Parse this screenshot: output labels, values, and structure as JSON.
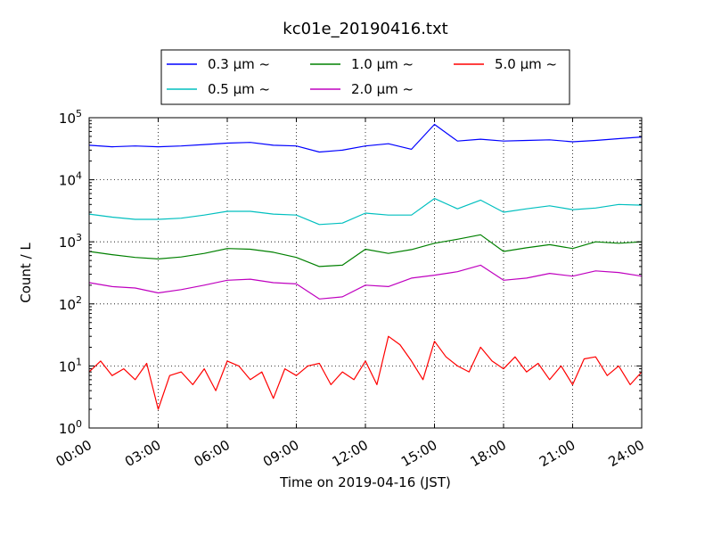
{
  "chart_data": {
    "type": "line",
    "title": "kc01e_20190416.txt",
    "xlabel": "Time on 2019-04-16 (JST)",
    "ylabel": "Count / L",
    "xlim": [
      0,
      24
    ],
    "ylim": [
      1,
      100000
    ],
    "yscale": "log",
    "grid": true,
    "legend_position": "top-center",
    "xticks": [
      0,
      3,
      6,
      9,
      12,
      15,
      18,
      21,
      24
    ],
    "xtick_labels": [
      "00:00",
      "03:00",
      "06:00",
      "09:00",
      "12:00",
      "15:00",
      "18:00",
      "21:00",
      "24:00"
    ],
    "yticks": [
      1,
      10,
      100,
      1000,
      10000,
      100000
    ],
    "ytick_labels": [
      {
        "base": "10",
        "exp": "0"
      },
      {
        "base": "10",
        "exp": "1"
      },
      {
        "base": "10",
        "exp": "2"
      },
      {
        "base": "10",
        "exp": "3"
      },
      {
        "base": "10",
        "exp": "4"
      },
      {
        "base": "10",
        "exp": "5"
      }
    ],
    "series": [
      {
        "name": "0.3 μm ~",
        "color": "#0000ff",
        "x": [
          0,
          1,
          2,
          3,
          4,
          5,
          6,
          7,
          8,
          9,
          10,
          11,
          12,
          13,
          14,
          15,
          16,
          17,
          18,
          19,
          20,
          21,
          22,
          23,
          24
        ],
        "values": [
          36000,
          34000,
          35000,
          34000,
          35000,
          37000,
          39000,
          40000,
          36000,
          35000,
          28000,
          30000,
          35000,
          38000,
          31000,
          78000,
          42000,
          45000,
          42000,
          43000,
          44000,
          41000,
          43000,
          46000,
          49000
        ]
      },
      {
        "name": "0.5 μm ~",
        "color": "#00bfbf",
        "x": [
          0,
          1,
          2,
          3,
          4,
          5,
          6,
          7,
          8,
          9,
          10,
          11,
          12,
          13,
          14,
          15,
          16,
          17,
          18,
          19,
          20,
          21,
          22,
          23,
          24
        ],
        "values": [
          2800,
          2500,
          2300,
          2300,
          2400,
          2700,
          3100,
          3100,
          2800,
          2700,
          1900,
          2000,
          2900,
          2700,
          2700,
          5000,
          3400,
          4700,
          3000,
          3400,
          3800,
          3300,
          3500,
          4000,
          3900
        ]
      },
      {
        "name": "1.0 μm ~",
        "color": "#008000",
        "x": [
          0,
          1,
          2,
          3,
          4,
          5,
          6,
          7,
          8,
          9,
          10,
          11,
          12,
          13,
          14,
          15,
          16,
          17,
          18,
          19,
          20,
          21,
          22,
          23,
          24
        ],
        "values": [
          700,
          620,
          560,
          530,
          570,
          650,
          780,
          760,
          680,
          560,
          400,
          420,
          760,
          650,
          750,
          950,
          1100,
          1300,
          700,
          800,
          900,
          780,
          1000,
          950,
          1000
        ]
      },
      {
        "name": "2.0 μm ~",
        "color": "#bf00bf",
        "x": [
          0,
          1,
          2,
          3,
          4,
          5,
          6,
          7,
          8,
          9,
          10,
          11,
          12,
          13,
          14,
          15,
          16,
          17,
          18,
          19,
          20,
          21,
          22,
          23,
          24
        ],
        "values": [
          220,
          190,
          180,
          150,
          170,
          200,
          240,
          250,
          220,
          210,
          120,
          130,
          200,
          190,
          260,
          290,
          330,
          420,
          240,
          260,
          310,
          280,
          340,
          320,
          280
        ]
      },
      {
        "name": "5.0 μm ~",
        "color": "#ff0000",
        "x": [
          0,
          0.5,
          1,
          1.5,
          2,
          2.5,
          3,
          3.5,
          4,
          4.5,
          5,
          5.5,
          6,
          6.5,
          7,
          7.5,
          8,
          8.5,
          9,
          9.5,
          10,
          10.5,
          11,
          11.5,
          12,
          12.5,
          13,
          13.5,
          14,
          14.5,
          15,
          15.5,
          16,
          16.5,
          17,
          17.5,
          18,
          18.5,
          19,
          19.5,
          20,
          20.5,
          21,
          21.5,
          22,
          22.5,
          23,
          23.5,
          24
        ],
        "values": [
          8,
          12,
          7,
          9,
          6,
          11,
          2,
          7,
          8,
          5,
          9,
          4,
          12,
          10,
          6,
          8,
          3,
          9,
          7,
          10,
          11,
          5,
          8,
          6,
          12,
          5,
          30,
          22,
          12,
          6,
          25,
          14,
          10,
          8,
          20,
          12,
          9,
          14,
          8,
          11,
          6,
          10,
          5,
          13,
          14,
          7,
          10,
          5,
          8
        ]
      }
    ]
  }
}
